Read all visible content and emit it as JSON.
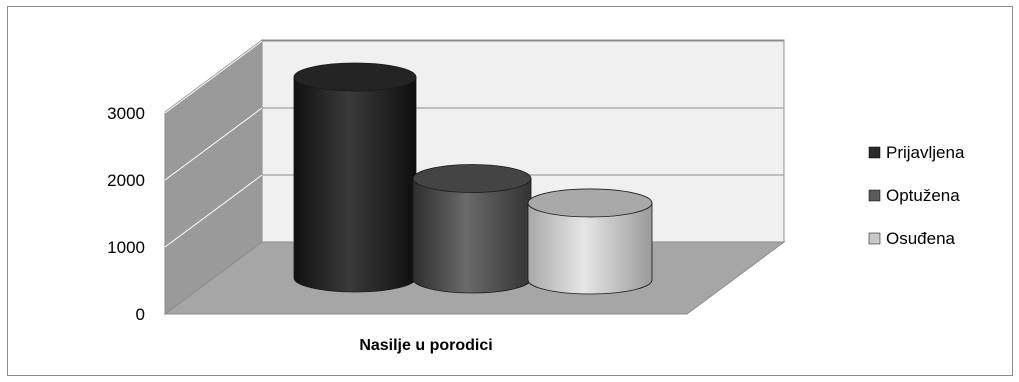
{
  "chart_data": {
    "type": "bar",
    "style": "3d-cylinder",
    "title": "",
    "xlabel": "",
    "ylabel": "",
    "categories": [
      "Nasilje u porodici"
    ],
    "series": [
      {
        "name": "Prijavljena",
        "values": [
          3000
        ],
        "color": "#2b2b2b"
      },
      {
        "name": "Optužena",
        "values": [
          1500
        ],
        "color": "#5a5a5a"
      },
      {
        "name": "Osuđena",
        "values": [
          1150
        ],
        "color": "#c9c9c9"
      }
    ],
    "ylim": [
      0,
      3000
    ],
    "yticks": [
      "0",
      "1000",
      "2000",
      "3000"
    ],
    "grid": true,
    "legend_position": "right",
    "colors": {
      "back_wall": "#f0f0f0",
      "side_wall": "#9a9a9a",
      "floor": "#a6a6a6",
      "gridline": "#ffffff"
    }
  }
}
